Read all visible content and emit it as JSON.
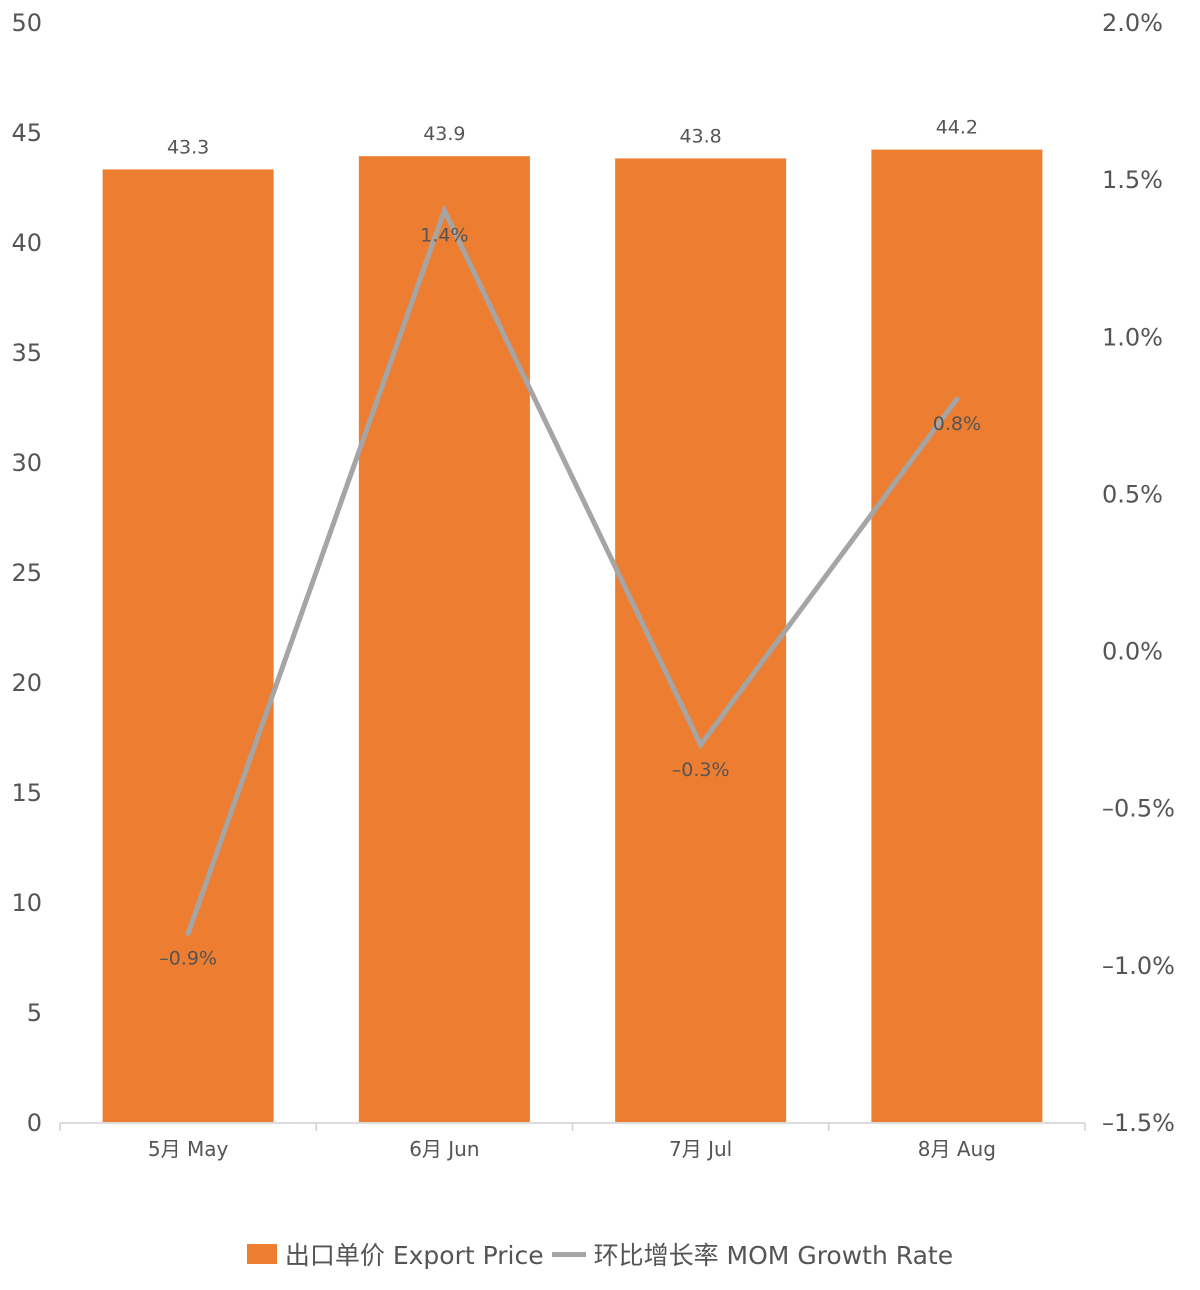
{
  "chart_data": {
    "type": "bar",
    "categories": [
      "5月 May",
      "6月 Jun",
      "7月 Jul",
      "8月 Aug"
    ],
    "series": [
      {
        "name": "出口单价 Export Price",
        "type": "bar",
        "axis": "left",
        "color": "#ED7D31",
        "values": [
          43.3,
          43.9,
          43.8,
          44.2
        ],
        "labels": [
          "43.3",
          "43.9",
          "43.8",
          "44.2"
        ]
      },
      {
        "name": "环比增长率 MOM Growth Rate",
        "type": "line",
        "axis": "right",
        "color": "#A5A5A5",
        "values": [
          -0.9,
          1.4,
          -0.3,
          0.8
        ],
        "labels": [
          "–0.9%",
          "1.4%",
          "–0.3%",
          "0.8%"
        ]
      }
    ],
    "y_left": {
      "ylim": [
        0,
        50
      ],
      "ticks": [
        "0",
        "5",
        "10",
        "15",
        "20",
        "25",
        "30",
        "35",
        "40",
        "45",
        "50"
      ]
    },
    "y_right": {
      "ylim": [
        -1.5,
        2.0
      ],
      "ticks": [
        "–1.5%",
        "–1.0%",
        "–0.5%",
        "0.0%",
        "0.5%",
        "1.0%",
        "1.5%",
        "2.0%"
      ]
    },
    "grid": false,
    "legend_position": "bottom-center"
  }
}
